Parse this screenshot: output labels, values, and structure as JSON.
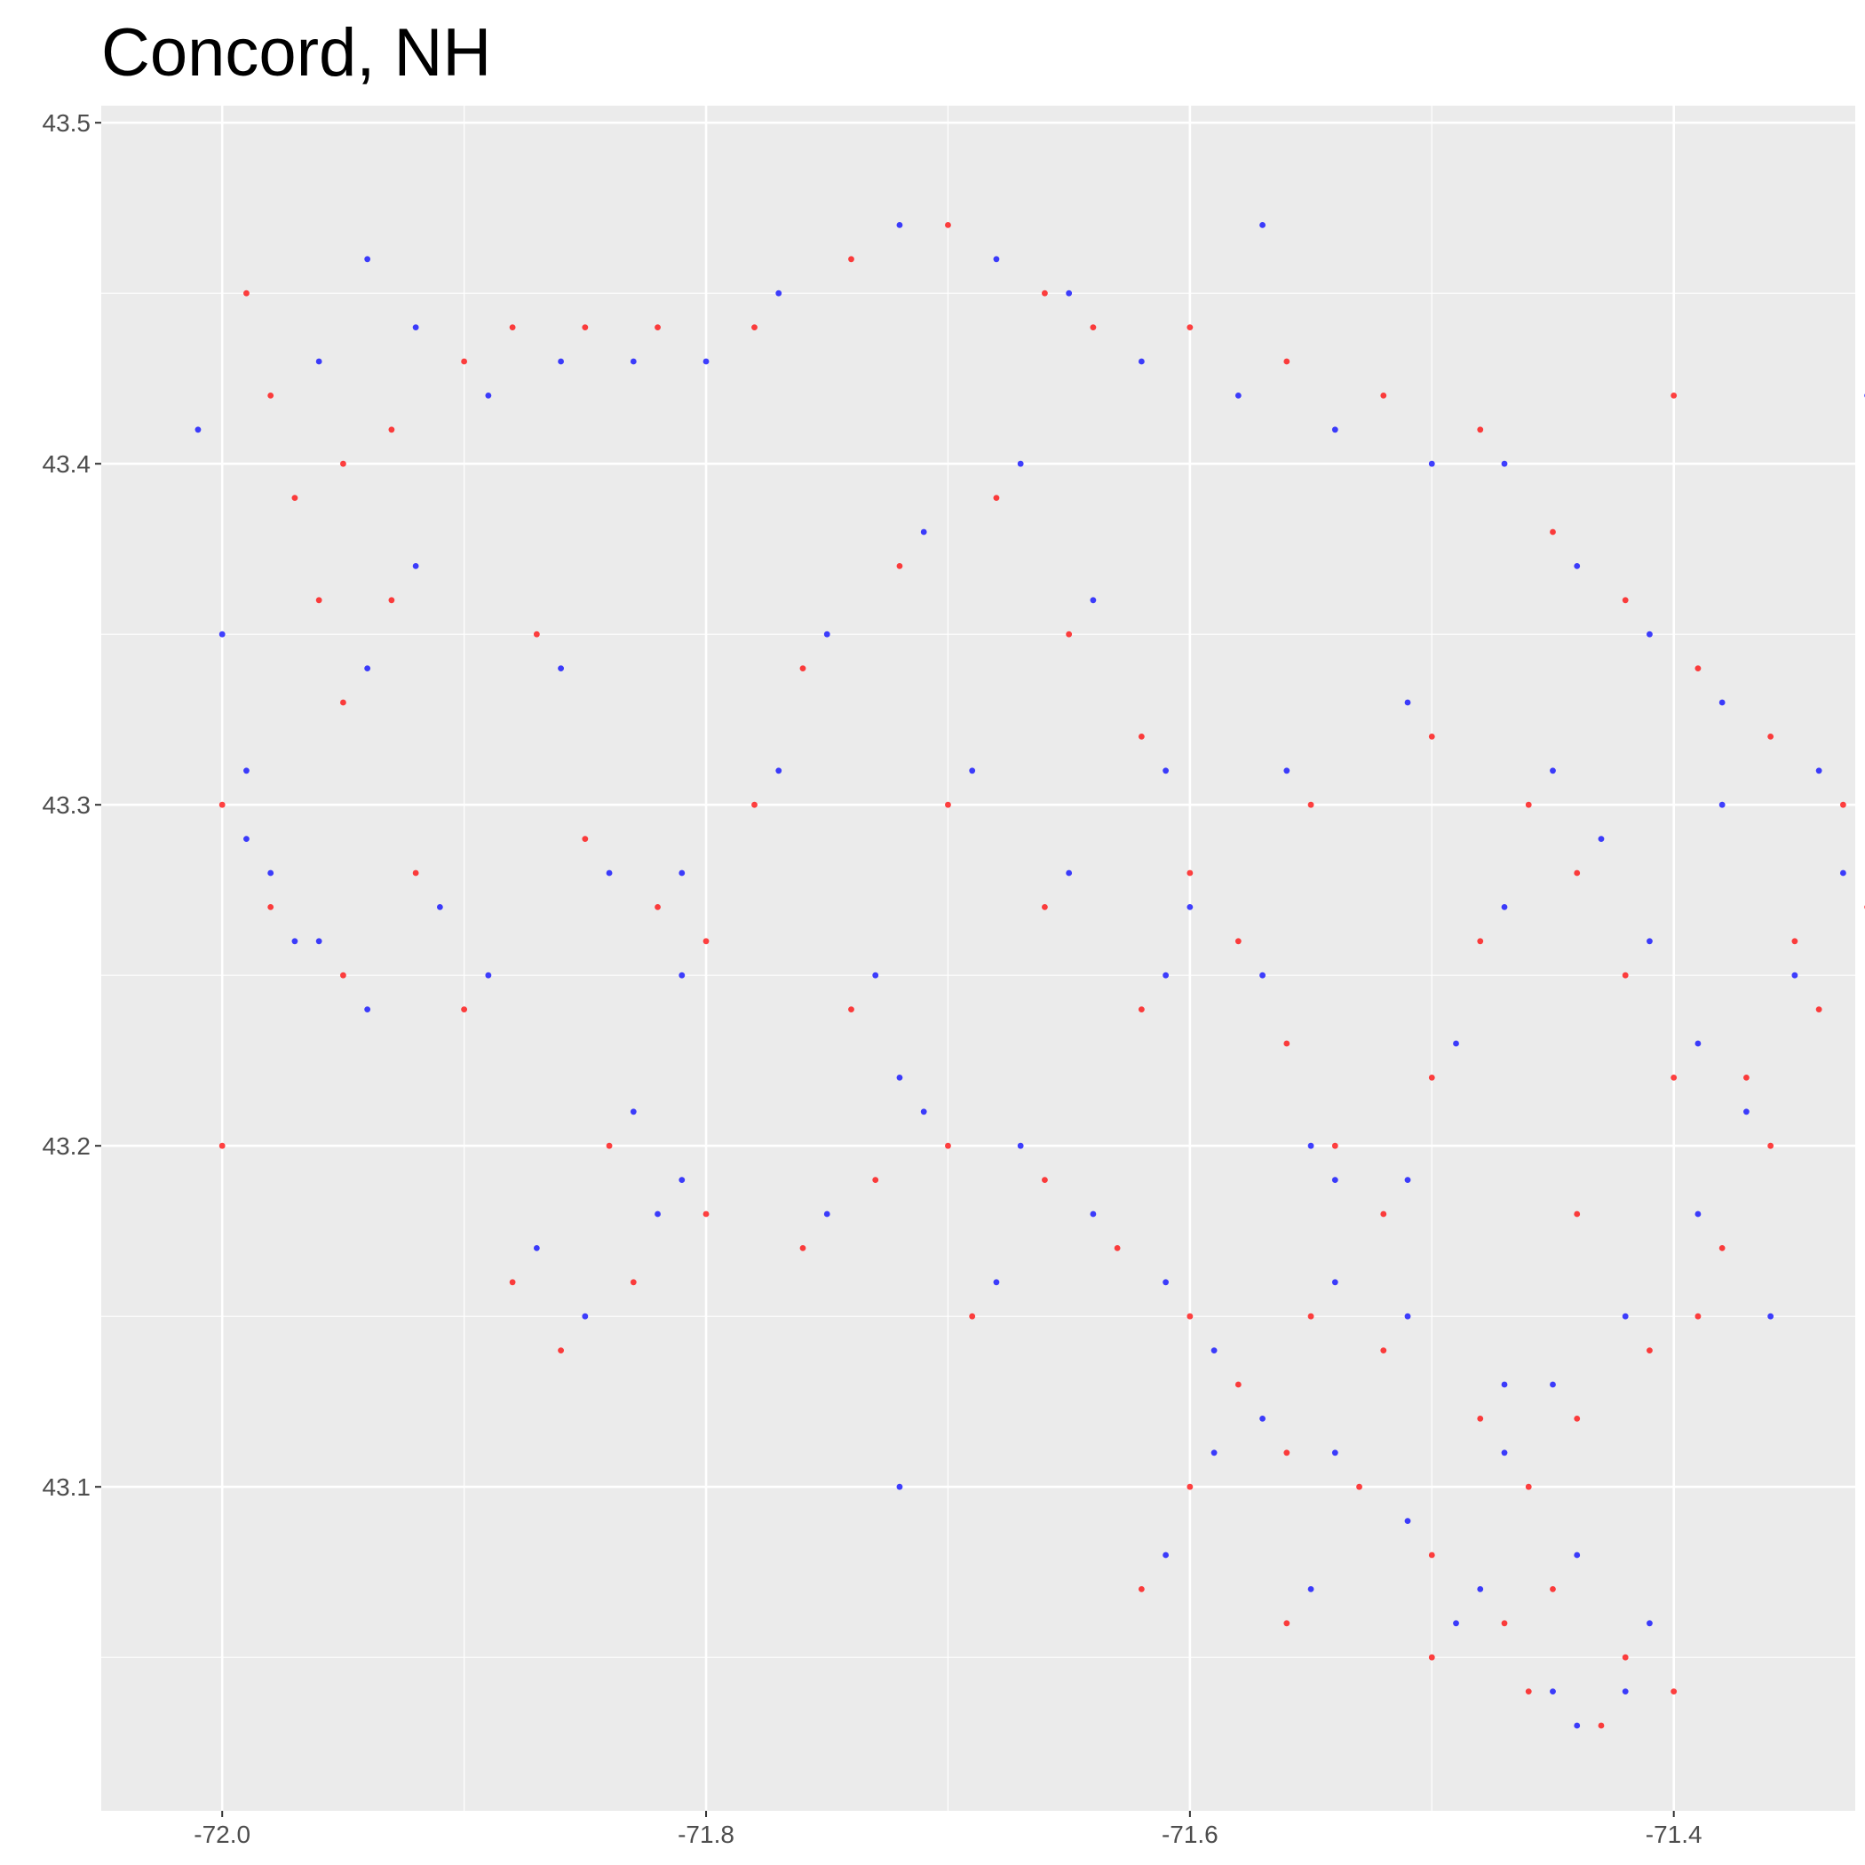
{
  "chart_data": {
    "type": "scatter",
    "title": "Concord, NH",
    "xlabel": "",
    "ylabel": "",
    "xlim": [
      -72.05,
      71.99
    ],
    "ylim": [
      43.005,
      43.505
    ],
    "x_ticks": [
      -72.0,
      -71.8,
      -71.6,
      -71.4
    ],
    "x_tick_labels": [
      "-72.0",
      "-71.8",
      "-71.6",
      "-71.4"
    ],
    "y_ticks": [
      43.1,
      43.2,
      43.3,
      43.4,
      43.5
    ],
    "y_tick_labels": [
      "43.1",
      "43.2",
      "43.3",
      "43.4",
      "43.5"
    ],
    "grid": true,
    "legend": "none",
    "panel_background": "#ebebeb",
    "series": [
      {
        "color": "#ff0000",
        "points": [
          [
            -72.0,
            43.2
          ],
          [
            -71.99,
            43.45
          ],
          [
            -71.98,
            43.42
          ],
          [
            -71.97,
            43.39
          ],
          [
            -71.96,
            43.36
          ],
          [
            -71.95,
            43.4
          ],
          [
            -71.93,
            43.41
          ],
          [
            -71.9,
            43.43
          ],
          [
            -71.88,
            43.44
          ],
          [
            -71.85,
            43.44
          ],
          [
            -71.82,
            43.44
          ],
          [
            -71.78,
            43.44
          ],
          [
            -71.74,
            43.46
          ],
          [
            -71.7,
            43.47
          ],
          [
            -71.66,
            43.45
          ],
          [
            -71.64,
            43.44
          ],
          [
            -71.6,
            43.44
          ],
          [
            -71.56,
            43.43
          ],
          [
            -71.52,
            43.42
          ],
          [
            -71.48,
            43.41
          ],
          [
            -71.45,
            43.38
          ],
          [
            -71.42,
            43.36
          ],
          [
            -71.39,
            43.34
          ],
          [
            -71.36,
            43.32
          ],
          [
            -71.33,
            43.3
          ],
          [
            -71.32,
            43.27
          ],
          [
            -71.34,
            43.24
          ],
          [
            -71.36,
            43.2
          ],
          [
            -71.38,
            43.17
          ],
          [
            -71.41,
            43.14
          ],
          [
            -71.44,
            43.12
          ],
          [
            -71.46,
            43.1
          ],
          [
            -71.45,
            43.07
          ],
          [
            -71.42,
            43.05
          ],
          [
            -71.4,
            43.04
          ],
          [
            -71.43,
            43.03
          ],
          [
            -71.47,
            43.06
          ],
          [
            -71.5,
            43.08
          ],
          [
            -71.53,
            43.1
          ],
          [
            -71.56,
            43.11
          ],
          [
            -71.58,
            43.13
          ],
          [
            -71.6,
            43.15
          ],
          [
            -71.63,
            43.17
          ],
          [
            -71.66,
            43.19
          ],
          [
            -71.7,
            43.2
          ],
          [
            -71.73,
            43.19
          ],
          [
            -71.76,
            43.17
          ],
          [
            -71.8,
            43.18
          ],
          [
            -71.83,
            43.16
          ],
          [
            -71.86,
            43.14
          ],
          [
            -71.88,
            43.16
          ],
          [
            -71.84,
            43.2
          ],
          [
            -71.8,
            43.26
          ],
          [
            -71.78,
            43.3
          ],
          [
            -71.76,
            43.34
          ],
          [
            -71.72,
            43.37
          ],
          [
            -71.68,
            43.39
          ],
          [
            -71.65,
            43.35
          ],
          [
            -71.62,
            43.32
          ],
          [
            -71.6,
            43.28
          ],
          [
            -71.58,
            43.26
          ],
          [
            -71.56,
            43.23
          ],
          [
            -71.54,
            43.2
          ],
          [
            -71.52,
            43.18
          ],
          [
            -71.5,
            43.22
          ],
          [
            -71.48,
            43.26
          ],
          [
            -71.46,
            43.3
          ],
          [
            -71.44,
            43.28
          ],
          [
            -71.42,
            43.25
          ],
          [
            -71.4,
            43.22
          ],
          [
            -71.5,
            43.32
          ],
          [
            -71.55,
            43.3
          ],
          [
            -71.62,
            43.24
          ],
          [
            -71.66,
            43.27
          ],
          [
            -71.7,
            43.3
          ],
          [
            -71.74,
            43.24
          ],
          [
            -71.69,
            43.15
          ],
          [
            -71.55,
            43.15
          ],
          [
            -71.52,
            43.14
          ],
          [
            -71.48,
            43.12
          ],
          [
            -71.6,
            43.1
          ],
          [
            -71.62,
            43.07
          ],
          [
            -71.56,
            43.06
          ],
          [
            -71.5,
            43.05
          ],
          [
            -71.46,
            43.04
          ],
          [
            -72.0,
            43.3
          ],
          [
            -71.98,
            43.27
          ],
          [
            -71.95,
            43.25
          ],
          [
            -71.92,
            43.28
          ],
          [
            -71.9,
            43.24
          ],
          [
            -71.93,
            43.36
          ],
          [
            -71.95,
            43.33
          ],
          [
            -71.87,
            43.35
          ],
          [
            -71.85,
            43.29
          ],
          [
            -71.82,
            43.27
          ],
          [
            -71.4,
            43.42
          ],
          [
            -71.35,
            43.26
          ],
          [
            -71.37,
            43.22
          ],
          [
            -71.44,
            43.18
          ],
          [
            -71.39,
            43.15
          ]
        ]
      },
      {
        "color": "#0000ff",
        "points": [
          [
            -72.01,
            43.41
          ],
          [
            -72.0,
            43.35
          ],
          [
            -71.99,
            43.31
          ],
          [
            -71.98,
            43.28
          ],
          [
            -71.96,
            43.26
          ],
          [
            -71.96,
            43.43
          ],
          [
            -71.94,
            43.46
          ],
          [
            -71.92,
            43.44
          ],
          [
            -71.89,
            43.42
          ],
          [
            -71.86,
            43.43
          ],
          [
            -71.83,
            43.43
          ],
          [
            -71.8,
            43.43
          ],
          [
            -71.77,
            43.45
          ],
          [
            -71.72,
            43.47
          ],
          [
            -71.68,
            43.46
          ],
          [
            -71.65,
            43.45
          ],
          [
            -71.62,
            43.43
          ],
          [
            -71.58,
            43.42
          ],
          [
            -71.54,
            43.41
          ],
          [
            -71.5,
            43.4
          ],
          [
            -71.47,
            43.4
          ],
          [
            -71.44,
            43.37
          ],
          [
            -71.41,
            43.35
          ],
          [
            -71.38,
            43.33
          ],
          [
            -71.34,
            43.31
          ],
          [
            -71.33,
            43.28
          ],
          [
            -71.35,
            43.25
          ],
          [
            -71.37,
            43.21
          ],
          [
            -71.39,
            43.18
          ],
          [
            -71.42,
            43.15
          ],
          [
            -71.45,
            43.13
          ],
          [
            -71.47,
            43.11
          ],
          [
            -71.44,
            43.08
          ],
          [
            -71.41,
            43.06
          ],
          [
            -71.42,
            43.04
          ],
          [
            -71.44,
            43.03
          ],
          [
            -71.48,
            43.07
          ],
          [
            -71.51,
            43.09
          ],
          [
            -71.54,
            43.11
          ],
          [
            -71.57,
            43.12
          ],
          [
            -71.59,
            43.14
          ],
          [
            -71.61,
            43.16
          ],
          [
            -71.64,
            43.18
          ],
          [
            -71.67,
            43.2
          ],
          [
            -71.71,
            43.21
          ],
          [
            -71.72,
            43.22
          ],
          [
            -71.75,
            43.18
          ],
          [
            -71.81,
            43.19
          ],
          [
            -71.82,
            43.18
          ],
          [
            -71.85,
            43.15
          ],
          [
            -71.87,
            43.17
          ],
          [
            -71.83,
            43.21
          ],
          [
            -71.81,
            43.25
          ],
          [
            -71.77,
            43.31
          ],
          [
            -71.75,
            43.35
          ],
          [
            -71.71,
            43.38
          ],
          [
            -71.67,
            43.4
          ],
          [
            -71.64,
            43.36
          ],
          [
            -71.61,
            43.31
          ],
          [
            -71.6,
            43.27
          ],
          [
            -71.57,
            43.25
          ],
          [
            -71.55,
            43.2
          ],
          [
            -71.54,
            43.19
          ],
          [
            -71.51,
            43.19
          ],
          [
            -71.49,
            43.23
          ],
          [
            -71.47,
            43.27
          ],
          [
            -71.45,
            43.31
          ],
          [
            -71.43,
            43.29
          ],
          [
            -71.41,
            43.26
          ],
          [
            -71.39,
            43.23
          ],
          [
            -71.51,
            43.33
          ],
          [
            -71.56,
            43.31
          ],
          [
            -71.61,
            43.25
          ],
          [
            -71.65,
            43.28
          ],
          [
            -71.69,
            43.31
          ],
          [
            -71.73,
            43.25
          ],
          [
            -71.68,
            43.16
          ],
          [
            -71.54,
            43.16
          ],
          [
            -71.51,
            43.15
          ],
          [
            -71.47,
            43.13
          ],
          [
            -71.59,
            43.11
          ],
          [
            -71.61,
            43.08
          ],
          [
            -71.55,
            43.07
          ],
          [
            -71.49,
            43.06
          ],
          [
            -71.45,
            43.04
          ],
          [
            -71.99,
            43.29
          ],
          [
            -71.97,
            43.26
          ],
          [
            -71.94,
            43.24
          ],
          [
            -71.91,
            43.27
          ],
          [
            -71.89,
            43.25
          ],
          [
            -71.92,
            43.37
          ],
          [
            -71.94,
            43.34
          ],
          [
            -71.86,
            43.34
          ],
          [
            -71.84,
            43.28
          ],
          [
            -71.81,
            43.28
          ],
          [
            -71.32,
            43.42
          ],
          [
            -71.72,
            43.1
          ],
          [
            -71.57,
            43.47
          ],
          [
            -71.38,
            43.3
          ],
          [
            -71.36,
            43.15
          ]
        ]
      }
    ]
  }
}
